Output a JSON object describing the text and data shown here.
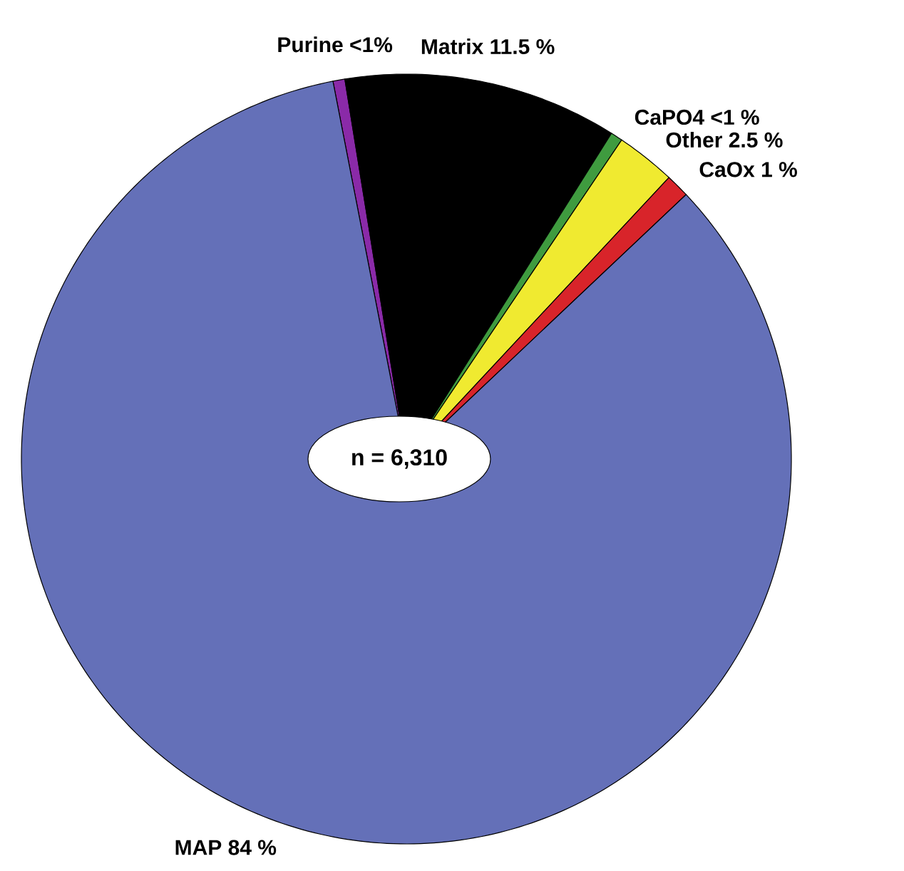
{
  "chart_data": {
    "type": "pie",
    "categories": [
      "Purine",
      "Matrix",
      "CaPO4",
      "Other",
      "CaOx",
      "MAP"
    ],
    "values": [
      0.5,
      11.5,
      0.5,
      2.5,
      1,
      84
    ],
    "value_labels": [
      "<1%",
      "11.5 %",
      "<1 %",
      "2.5 %",
      "1 %",
      "84 %"
    ],
    "colors": [
      "#8a2aa8",
      "#000000",
      "#3f9b3f",
      "#f0ea30",
      "#d8242a",
      "#6470b8"
    ],
    "annotations": [
      "n = 6,310"
    ]
  }
}
